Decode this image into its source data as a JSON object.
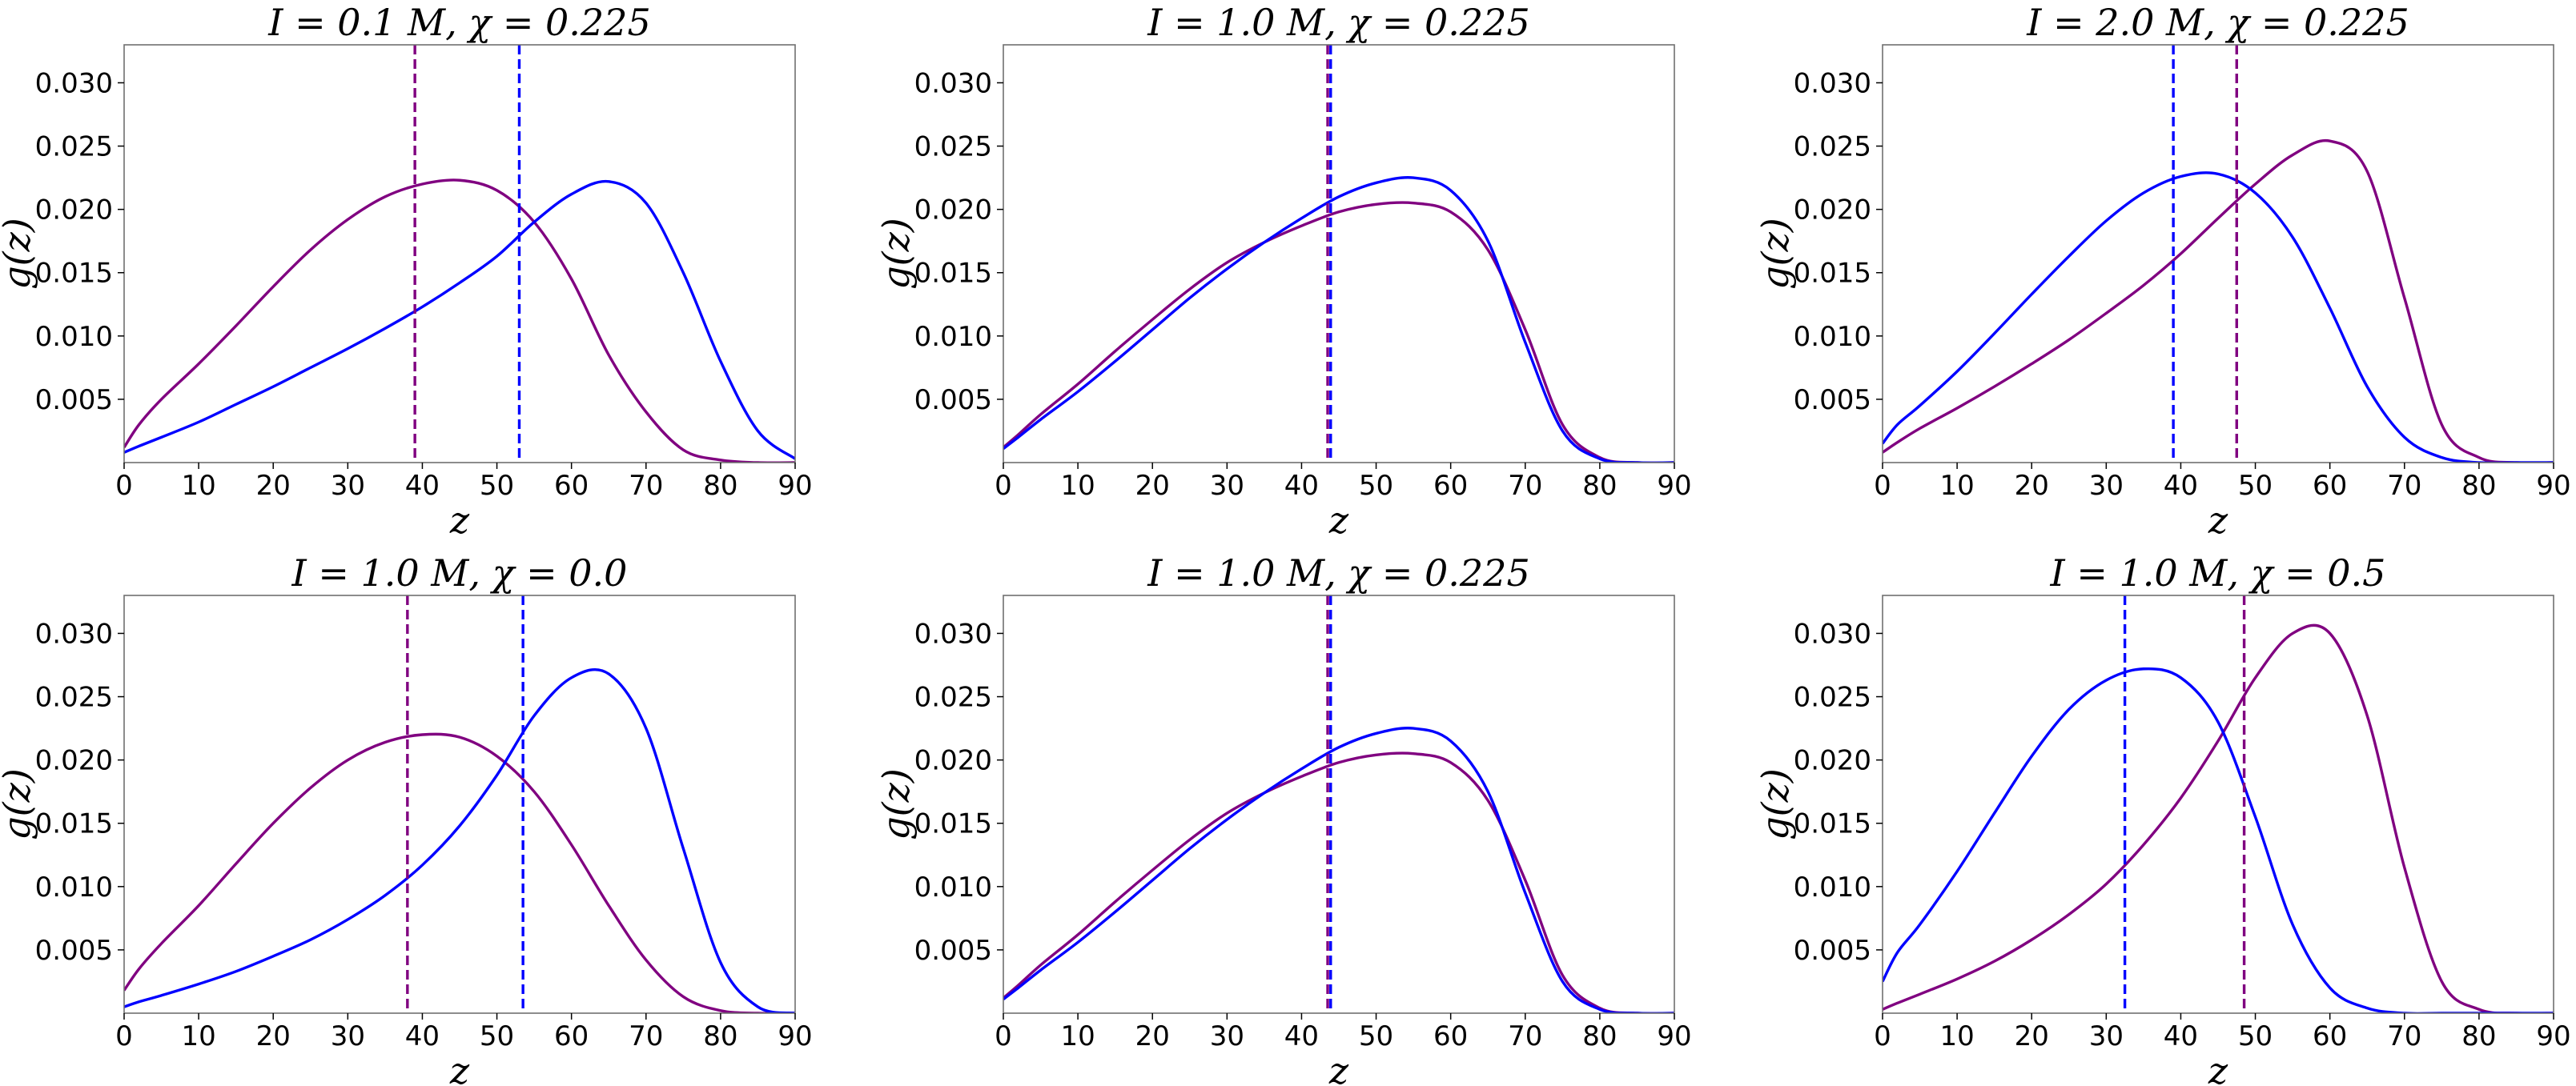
{
  "chart_data": [
    {
      "type": "line",
      "title": "I = 0.1 M, χ = 0.225",
      "xlabel": "z",
      "ylabel": "g(z)",
      "xlim": [
        0,
        90
      ],
      "ylim": [
        0,
        0.033
      ],
      "xticks": [
        "0",
        "10",
        "20",
        "30",
        "40",
        "50",
        "60",
        "70",
        "80",
        "90"
      ],
      "yticks": [
        "0.005",
        "0.010",
        "0.015",
        "0.020",
        "0.025",
        "0.030"
      ],
      "series": [
        {
          "name": "purple",
          "color": "#800080",
          "x": [
            0,
            2,
            5,
            10,
            15,
            20,
            25,
            30,
            35,
            40,
            45,
            50,
            55,
            60,
            65,
            70,
            75,
            80,
            85,
            90
          ],
          "y": [
            0.0012,
            0.003,
            0.005,
            0.0078,
            0.0108,
            0.0139,
            0.0168,
            0.0192,
            0.021,
            0.022,
            0.0223,
            0.0215,
            0.019,
            0.0145,
            0.0085,
            0.004,
            0.001,
            0.0002,
            0.0,
            0.0
          ]
        },
        {
          "name": "blue",
          "color": "#0000ff",
          "x": [
            0,
            2,
            5,
            10,
            15,
            20,
            25,
            30,
            35,
            40,
            45,
            50,
            55,
            60,
            65,
            70,
            75,
            80,
            85,
            90
          ],
          "y": [
            0.0008,
            0.0013,
            0.002,
            0.0032,
            0.0046,
            0.006,
            0.0075,
            0.009,
            0.0106,
            0.0123,
            0.0142,
            0.0163,
            0.019,
            0.0212,
            0.0222,
            0.0205,
            0.015,
            0.008,
            0.0025,
            0.0003
          ]
        }
      ],
      "vlines": [
        {
          "x": 39,
          "color": "#800080"
        },
        {
          "x": 53,
          "color": "#0000ff"
        }
      ]
    },
    {
      "type": "line",
      "title": "I = 1.0 M, χ = 0.225",
      "xlabel": "z",
      "ylabel": "g(z)",
      "xlim": [
        0,
        90
      ],
      "ylim": [
        0,
        0.033
      ],
      "xticks": [
        "0",
        "10",
        "20",
        "30",
        "40",
        "50",
        "60",
        "70",
        "80",
        "90"
      ],
      "yticks": [
        "0.005",
        "0.010",
        "0.015",
        "0.020",
        "0.025",
        "0.030"
      ],
      "series": [
        {
          "name": "purple",
          "color": "#800080",
          "x": [
            0,
            2,
            5,
            10,
            15,
            20,
            25,
            30,
            35,
            40,
            45,
            50,
            55,
            60,
            65,
            70,
            75,
            80,
            85,
            90
          ],
          "y": [
            0.0012,
            0.0022,
            0.0038,
            0.0062,
            0.0088,
            0.0113,
            0.0137,
            0.0158,
            0.0174,
            0.0187,
            0.0198,
            0.0204,
            0.0205,
            0.0198,
            0.0168,
            0.0105,
            0.003,
            0.0004,
            0.0,
            0.0
          ]
        },
        {
          "name": "blue",
          "color": "#0000ff",
          "x": [
            0,
            2,
            5,
            10,
            15,
            20,
            25,
            30,
            35,
            40,
            45,
            50,
            55,
            60,
            65,
            70,
            75,
            80,
            85,
            90
          ],
          "y": [
            0.0011,
            0.002,
            0.0034,
            0.0056,
            0.008,
            0.0105,
            0.013,
            0.0153,
            0.0174,
            0.0193,
            0.021,
            0.0221,
            0.0225,
            0.0215,
            0.0175,
            0.0095,
            0.0025,
            0.0003,
            0.0,
            0.0
          ]
        }
      ],
      "vlines": [
        {
          "x": 43.5,
          "color": "#800080"
        },
        {
          "x": 43.9,
          "color": "#0000ff"
        }
      ]
    },
    {
      "type": "line",
      "title": "I = 2.0 M, χ = 0.225",
      "xlabel": "z",
      "ylabel": "g(z)",
      "xlim": [
        0,
        90
      ],
      "ylim": [
        0,
        0.033
      ],
      "xticks": [
        "0",
        "10",
        "20",
        "30",
        "40",
        "50",
        "60",
        "70",
        "80",
        "90"
      ],
      "yticks": [
        "0.005",
        "0.010",
        "0.015",
        "0.020",
        "0.025",
        "0.030"
      ],
      "series": [
        {
          "name": "purple",
          "color": "#800080",
          "x": [
            0,
            2,
            5,
            10,
            15,
            20,
            25,
            30,
            35,
            40,
            45,
            50,
            55,
            60,
            65,
            70,
            75,
            80,
            85,
            90
          ],
          "y": [
            0.0008,
            0.0016,
            0.0027,
            0.0043,
            0.006,
            0.0078,
            0.0097,
            0.0118,
            0.014,
            0.0165,
            0.0193,
            0.022,
            0.0243,
            0.0254,
            0.023,
            0.013,
            0.003,
            0.0004,
            0.0,
            0.0
          ]
        },
        {
          "name": "blue",
          "color": "#0000ff",
          "x": [
            0,
            2,
            5,
            10,
            15,
            20,
            25,
            30,
            35,
            40,
            45,
            50,
            55,
            60,
            65,
            70,
            75,
            80,
            85,
            90
          ],
          "y": [
            0.0015,
            0.003,
            0.0045,
            0.0072,
            0.0102,
            0.0133,
            0.0163,
            0.0191,
            0.0213,
            0.0226,
            0.0228,
            0.0213,
            0.0178,
            0.0122,
            0.006,
            0.002,
            0.0004,
            0.0,
            0.0,
            0.0
          ]
        }
      ],
      "vlines": [
        {
          "x": 39,
          "color": "#0000ff"
        },
        {
          "x": 47.5,
          "color": "#800080"
        }
      ]
    },
    {
      "type": "line",
      "title": "I = 1.0 M, χ = 0.0",
      "xlabel": "z",
      "ylabel": "g(z)",
      "xlim": [
        0,
        90
      ],
      "ylim": [
        0,
        0.033
      ],
      "xticks": [
        "0",
        "10",
        "20",
        "30",
        "40",
        "50",
        "60",
        "70",
        "80",
        "90"
      ],
      "yticks": [
        "0.005",
        "0.010",
        "0.015",
        "0.020",
        "0.025",
        "0.030"
      ],
      "series": [
        {
          "name": "purple",
          "color": "#800080",
          "x": [
            0,
            2,
            5,
            10,
            15,
            20,
            25,
            30,
            35,
            40,
            45,
            50,
            55,
            60,
            65,
            70,
            75,
            80,
            85,
            90
          ],
          "y": [
            0.0018,
            0.0035,
            0.0055,
            0.0085,
            0.0118,
            0.015,
            0.0178,
            0.02,
            0.0214,
            0.022,
            0.0218,
            0.0203,
            0.0175,
            0.0133,
            0.0085,
            0.0042,
            0.0013,
            0.0002,
            0.0,
            0.0
          ]
        },
        {
          "name": "blue",
          "color": "#0000ff",
          "x": [
            0,
            2,
            5,
            10,
            15,
            20,
            25,
            30,
            35,
            40,
            45,
            50,
            55,
            60,
            65,
            70,
            75,
            80,
            85,
            90
          ],
          "y": [
            0.0005,
            0.0009,
            0.0014,
            0.0023,
            0.0033,
            0.0045,
            0.0058,
            0.0074,
            0.0093,
            0.0117,
            0.0148,
            0.0188,
            0.0235,
            0.0265,
            0.0268,
            0.0225,
            0.013,
            0.004,
            0.0005,
            0.0
          ]
        }
      ],
      "vlines": [
        {
          "x": 38,
          "color": "#800080"
        },
        {
          "x": 53.5,
          "color": "#0000ff"
        }
      ]
    },
    {
      "type": "line",
      "title": "I = 1.0 M, χ = 0.225",
      "xlabel": "z",
      "ylabel": "g(z)",
      "xlim": [
        0,
        90
      ],
      "ylim": [
        0,
        0.033
      ],
      "xticks": [
        "0",
        "10",
        "20",
        "30",
        "40",
        "50",
        "60",
        "70",
        "80",
        "90"
      ],
      "yticks": [
        "0.005",
        "0.010",
        "0.015",
        "0.020",
        "0.025",
        "0.030"
      ],
      "series": [
        {
          "name": "purple",
          "color": "#800080",
          "x": [
            0,
            2,
            5,
            10,
            15,
            20,
            25,
            30,
            35,
            40,
            45,
            50,
            55,
            60,
            65,
            70,
            75,
            80,
            85,
            90
          ],
          "y": [
            0.0012,
            0.0022,
            0.0038,
            0.0062,
            0.0088,
            0.0113,
            0.0137,
            0.0158,
            0.0174,
            0.0187,
            0.0198,
            0.0204,
            0.0205,
            0.0198,
            0.0168,
            0.0105,
            0.003,
            0.0004,
            0.0,
            0.0
          ]
        },
        {
          "name": "blue",
          "color": "#0000ff",
          "x": [
            0,
            2,
            5,
            10,
            15,
            20,
            25,
            30,
            35,
            40,
            45,
            50,
            55,
            60,
            65,
            70,
            75,
            80,
            85,
            90
          ],
          "y": [
            0.0011,
            0.002,
            0.0034,
            0.0056,
            0.008,
            0.0105,
            0.013,
            0.0153,
            0.0174,
            0.0193,
            0.021,
            0.0221,
            0.0225,
            0.0215,
            0.0175,
            0.0095,
            0.0025,
            0.0003,
            0.0,
            0.0
          ]
        }
      ],
      "vlines": [
        {
          "x": 43.5,
          "color": "#800080"
        },
        {
          "x": 43.9,
          "color": "#0000ff"
        }
      ]
    },
    {
      "type": "line",
      "title": "I = 1.0 M, χ = 0.5",
      "xlabel": "z",
      "ylabel": "g(z)",
      "xlim": [
        0,
        90
      ],
      "ylim": [
        0,
        0.033
      ],
      "xticks": [
        "0",
        "10",
        "20",
        "30",
        "40",
        "50",
        "60",
        "70",
        "80",
        "90"
      ],
      "yticks": [
        "0.005",
        "0.010",
        "0.015",
        "0.020",
        "0.025",
        "0.030"
      ],
      "series": [
        {
          "name": "purple",
          "color": "#800080",
          "x": [
            0,
            2,
            5,
            10,
            15,
            20,
            25,
            30,
            35,
            40,
            45,
            50,
            55,
            60,
            65,
            70,
            75,
            80,
            85,
            90
          ],
          "y": [
            0.0003,
            0.0008,
            0.0015,
            0.0027,
            0.0041,
            0.0058,
            0.0078,
            0.0102,
            0.0133,
            0.017,
            0.0215,
            0.0265,
            0.03,
            0.03,
            0.0235,
            0.0115,
            0.0025,
            0.0003,
            0.0,
            0.0
          ]
        },
        {
          "name": "blue",
          "color": "#0000ff",
          "x": [
            0,
            2,
            5,
            10,
            15,
            20,
            25,
            30,
            35,
            40,
            45,
            50,
            55,
            60,
            65,
            70,
            75,
            80,
            85,
            90
          ],
          "y": [
            0.0025,
            0.0048,
            0.007,
            0.0112,
            0.0158,
            0.0203,
            0.024,
            0.0263,
            0.0272,
            0.0265,
            0.023,
            0.0155,
            0.007,
            0.002,
            0.0004,
            0.0,
            0.0,
            0.0,
            0.0,
            0.0
          ]
        }
      ],
      "vlines": [
        {
          "x": 32.5,
          "color": "#0000ff"
        },
        {
          "x": 48.5,
          "color": "#800080"
        }
      ]
    }
  ]
}
